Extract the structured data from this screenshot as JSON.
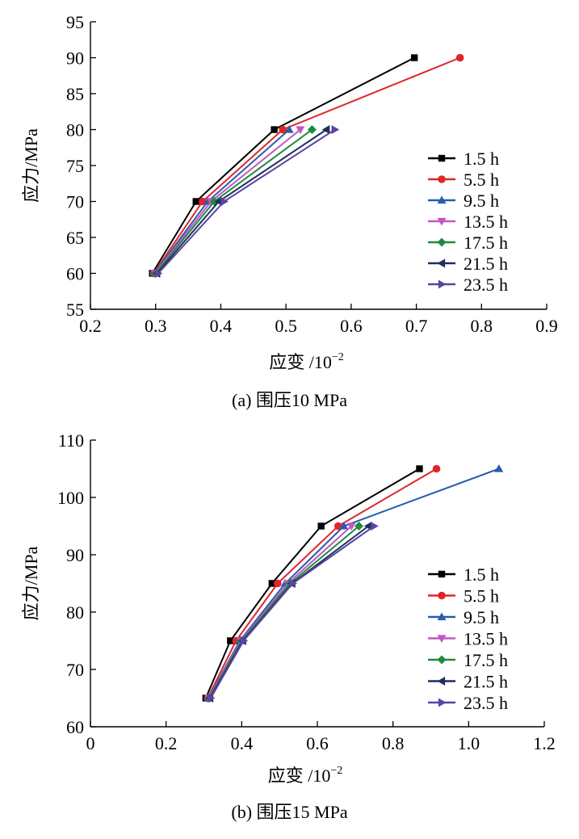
{
  "chart_data": [
    {
      "type": "line",
      "caption": "(a)  围压10 MPa",
      "ylabel": "应力/MPa",
      "xlabel_main": "应变 /10",
      "xlabel_exp": "−2",
      "xlim": [
        0.2,
        0.9
      ],
      "ylim": [
        55,
        95
      ],
      "xticks": [
        0.2,
        0.3,
        0.4,
        0.5,
        0.6,
        0.7,
        0.8,
        0.9
      ],
      "xtick_labels": [
        "0.2",
        "0.3",
        "0.4",
        "0.5",
        "0.6",
        "0.7",
        "0.8",
        "0.9"
      ],
      "yticks": [
        55,
        60,
        65,
        70,
        75,
        80,
        85,
        90,
        95
      ],
      "ytick_labels": [
        "55",
        "60",
        "65",
        "70",
        "75",
        "80",
        "85",
        "90",
        "95"
      ],
      "grid": false,
      "legend_position": "right",
      "series": [
        {
          "name": "1.5 h",
          "color": "#000000",
          "marker": "square",
          "x": [
            0.295,
            0.362,
            0.482,
            0.697
          ],
          "y": [
            60,
            70,
            80,
            90
          ]
        },
        {
          "name": "5.5 h",
          "color": "#e0262a",
          "marker": "circle",
          "x": [
            0.297,
            0.372,
            0.495,
            0.767
          ],
          "y": [
            60,
            70,
            80,
            90
          ]
        },
        {
          "name": "9.5 h",
          "color": "#2a5cae",
          "marker": "triangle-up",
          "x": [
            0.298,
            0.38,
            0.505
          ],
          "y": [
            60,
            70,
            80
          ]
        },
        {
          "name": "13.5 h",
          "color": "#c256c6",
          "marker": "triangle-down",
          "x": [
            0.299,
            0.385,
            0.522
          ],
          "y": [
            60,
            70,
            80
          ]
        },
        {
          "name": "17.5 h",
          "color": "#1f8c3c",
          "marker": "diamond",
          "x": [
            0.3,
            0.39,
            0.54
          ],
          "y": [
            60,
            70,
            80
          ]
        },
        {
          "name": "21.5 h",
          "color": "#1e2f5c",
          "marker": "triangle-left",
          "x": [
            0.302,
            0.397,
            0.562
          ],
          "y": [
            60,
            70,
            80
          ]
        },
        {
          "name": "23.5 h",
          "color": "#5b44a2",
          "marker": "triangle-right",
          "x": [
            0.304,
            0.405,
            0.575
          ],
          "y": [
            60,
            70,
            80
          ]
        }
      ]
    },
    {
      "type": "line",
      "caption": "(b)  围压15 MPa",
      "ylabel": "应力/MPa",
      "xlabel_main": "应变 /10",
      "xlabel_exp": "−2",
      "xlim": [
        0,
        1.2
      ],
      "ylim": [
        60,
        110
      ],
      "xticks": [
        0,
        0.2,
        0.4,
        0.6,
        0.8,
        1.0,
        1.2
      ],
      "xtick_labels": [
        "0",
        "0.2",
        "0.4",
        "0.6",
        "0.8",
        "1.0",
        "1.2"
      ],
      "yticks": [
        60,
        70,
        80,
        90,
        100,
        110
      ],
      "ytick_labels": [
        "60",
        "70",
        "80",
        "90",
        "100",
        "110"
      ],
      "grid": false,
      "legend_position": "right",
      "series": [
        {
          "name": "1.5 h",
          "color": "#000000",
          "marker": "square",
          "x": [
            0.305,
            0.37,
            0.48,
            0.61,
            0.87
          ],
          "y": [
            65,
            75,
            85,
            95,
            105
          ]
        },
        {
          "name": "5.5 h",
          "color": "#e0262a",
          "marker": "circle",
          "x": [
            0.31,
            0.385,
            0.495,
            0.655,
            0.915
          ],
          "y": [
            65,
            75,
            85,
            95,
            105
          ]
        },
        {
          "name": "9.5 h",
          "color": "#2a5cae",
          "marker": "triangle-up",
          "x": [
            0.312,
            0.395,
            0.515,
            0.67,
            1.08
          ],
          "y": [
            65,
            75,
            85,
            95,
            105
          ]
        },
        {
          "name": "13.5 h",
          "color": "#c256c6",
          "marker": "triangle-down",
          "x": [
            0.313,
            0.398,
            0.522,
            0.69
          ],
          "y": [
            65,
            75,
            85,
            95
          ]
        },
        {
          "name": "17.5 h",
          "color": "#1f8c3c",
          "marker": "diamond",
          "x": [
            0.315,
            0.4,
            0.528,
            0.71
          ],
          "y": [
            65,
            75,
            85,
            95
          ]
        },
        {
          "name": "21.5 h",
          "color": "#1e2f5c",
          "marker": "triangle-left",
          "x": [
            0.316,
            0.403,
            0.533,
            0.735
          ],
          "y": [
            65,
            75,
            85,
            95
          ]
        },
        {
          "name": "23.5 h",
          "color": "#5b44a2",
          "marker": "triangle-right",
          "x": [
            0.318,
            0.405,
            0.535,
            0.75
          ],
          "y": [
            65,
            75,
            85,
            95
          ]
        }
      ]
    }
  ]
}
